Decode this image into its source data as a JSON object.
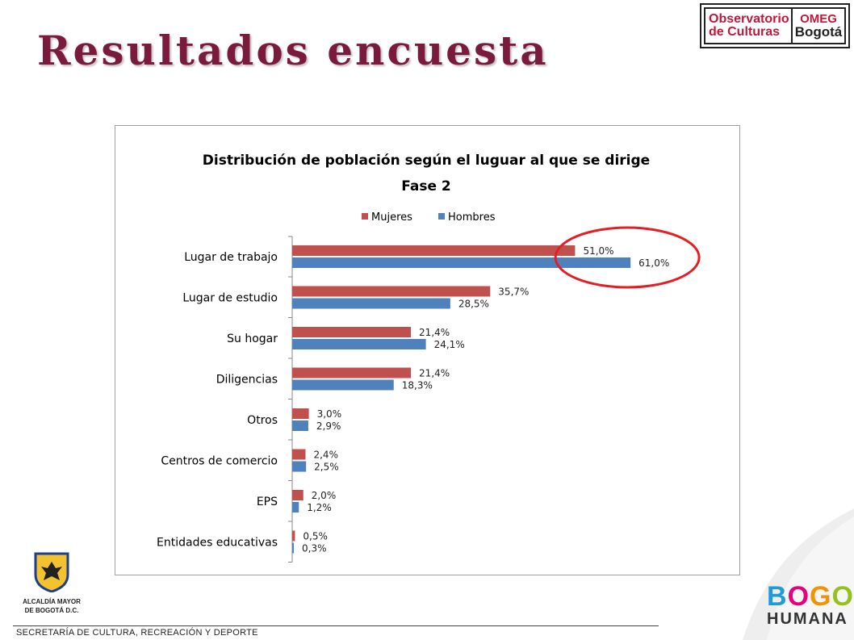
{
  "slide": {
    "title": "Resultados encuesta",
    "footer": "SECRETARÍA DE CULTURA, RECREACIÓN Y DEPORTE"
  },
  "logos": {
    "observatorio_line1": "Observatorio",
    "observatorio_line2": "de Culturas",
    "omeg_line1": "OMEG",
    "omeg_line2": "Bogotá",
    "alcaldia_line1": "ALCALDÍA MAYOR",
    "alcaldia_line2": "DE BOGOTÁ D.C.",
    "bogota_line1": "BOGOTÁ",
    "bogota_line2": "HUMANA"
  },
  "colors": {
    "title": "#7a1b3e",
    "mujeres": "#c0504d",
    "hombres": "#4f81bd",
    "highlight": "#e31e24"
  },
  "chart_data": {
    "type": "bar",
    "orientation": "horizontal",
    "title": "Distribución de población según el luguar al que se dirige",
    "subtitle": "Fase 2",
    "categories": [
      "Lugar de trabajo",
      "Lugar de estudio",
      "Su hogar",
      "Diligencias",
      "Otros",
      "Centros de comercio",
      "EPS",
      "Entidades educativas"
    ],
    "series": [
      {
        "name": "Mujeres",
        "color": "#c0504d",
        "values": [
          51.0,
          35.7,
          21.4,
          21.4,
          3.0,
          2.4,
          2.0,
          0.5
        ],
        "labels": [
          "51,0%",
          "35,7%",
          "21,4%",
          "21,4%",
          "3,0%",
          "2,4%",
          "2,0%",
          "0,5%"
        ]
      },
      {
        "name": "Hombres",
        "color": "#4f81bd",
        "values": [
          61.0,
          28.5,
          24.1,
          18.3,
          2.9,
          2.5,
          1.2,
          0.3
        ],
        "labels": [
          "61,0%",
          "28,5%",
          "24,1%",
          "18,3%",
          "2,9%",
          "2,5%",
          "1,2%",
          "0,3%"
        ]
      }
    ],
    "xlim": [
      0,
      70
    ],
    "legend_position": "top",
    "highlight_category": "Lugar de trabajo",
    "grid": false
  }
}
